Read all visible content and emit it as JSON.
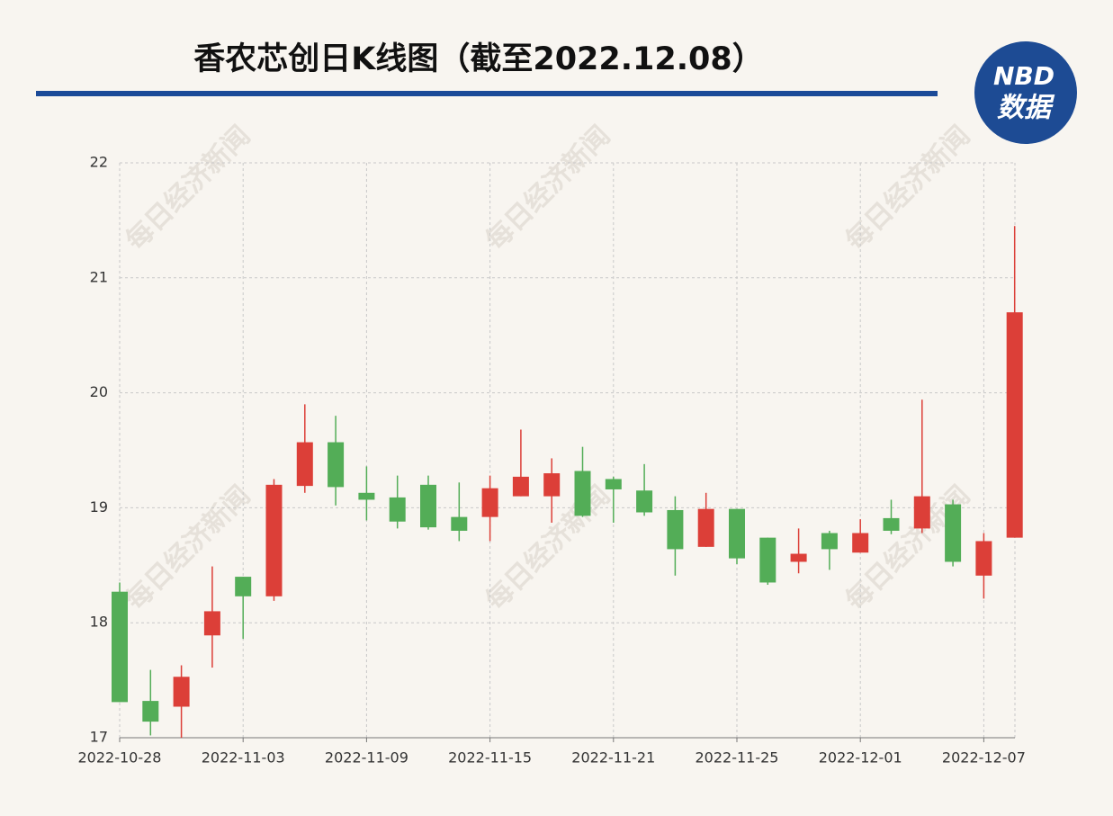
{
  "chart_data": {
    "type": "candlestick",
    "title": "香农芯创日K线图（截至2022.12.08）",
    "logo": {
      "top": "NBD",
      "bottom": "数据"
    },
    "watermark": "每日经济新闻",
    "categories": [
      "2022-10-28",
      null,
      null,
      null,
      "2022-11-03",
      null,
      null,
      null,
      "2022-11-09",
      null,
      null,
      null,
      "2022-11-15",
      null,
      null,
      null,
      "2022-11-21",
      null,
      null,
      null,
      "2022-11-25",
      null,
      null,
      null,
      "2022-12-01",
      null,
      null,
      null,
      "2022-12-07",
      null
    ],
    "open": [
      18.27,
      17.32,
      17.27,
      17.89,
      18.4,
      18.23,
      19.19,
      19.57,
      19.13,
      19.09,
      19.2,
      18.92,
      18.92,
      19.1,
      19.1,
      19.32,
      19.25,
      19.15,
      18.98,
      18.66,
      18.99,
      18.74,
      18.53,
      18.78,
      18.61,
      18.91,
      18.82,
      19.03,
      18.41,
      18.74
    ],
    "high": [
      18.35,
      17.59,
      17.63,
      18.49,
      18.4,
      19.25,
      19.9,
      19.8,
      19.36,
      19.28,
      19.28,
      19.22,
      19.28,
      19.68,
      19.43,
      19.53,
      19.27,
      19.38,
      19.1,
      19.13,
      18.99,
      18.74,
      18.82,
      18.8,
      18.9,
      19.07,
      19.94,
      19.07,
      18.78,
      21.45
    ],
    "low": [
      17.31,
      17.02,
      17.0,
      17.61,
      17.86,
      18.19,
      19.13,
      19.02,
      18.89,
      18.82,
      18.81,
      18.71,
      18.71,
      19.1,
      18.87,
      18.92,
      18.87,
      18.93,
      18.41,
      18.66,
      18.51,
      18.33,
      18.43,
      18.46,
      18.61,
      18.77,
      18.78,
      18.49,
      18.21,
      18.74
    ],
    "close": [
      17.31,
      17.14,
      17.53,
      18.1,
      18.23,
      19.2,
      19.57,
      19.18,
      19.07,
      18.88,
      18.83,
      18.8,
      19.17,
      19.27,
      19.3,
      18.93,
      19.16,
      18.96,
      18.64,
      18.99,
      18.56,
      18.35,
      18.6,
      18.64,
      18.78,
      18.8,
      19.1,
      18.53,
      18.71,
      20.7
    ],
    "up_color": "#dc3f38",
    "down_color": "#53ad57",
    "ylim": [
      17,
      22
    ],
    "yticks": [
      17,
      18,
      19,
      20,
      21,
      22
    ],
    "grid": true
  }
}
